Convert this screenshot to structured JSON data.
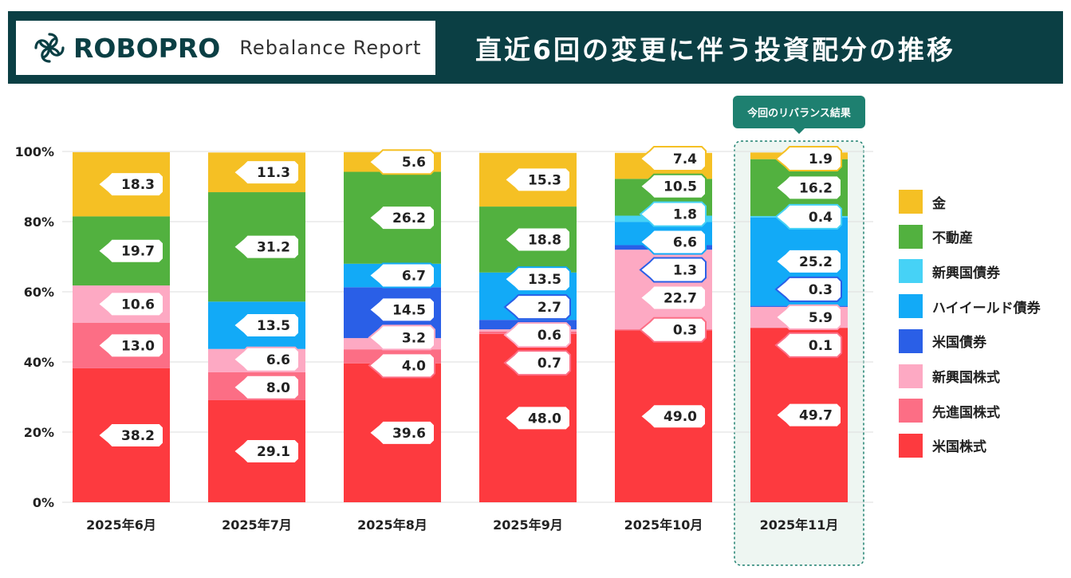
{
  "header": {
    "brand": "ROBOPRO",
    "subtitle": "Rebalance Report",
    "title": "直近6回の変更に伴う投資配分の推移",
    "logo_icon": "knot-logo-icon"
  },
  "colors": {
    "header_bg": "#0b3f44",
    "highlight_box": "#1e8070"
  },
  "chart_data": {
    "type": "bar",
    "stacked": true,
    "ylim": [
      0,
      100
    ],
    "yticks": [
      "0%",
      "20%",
      "40%",
      "60%",
      "80%",
      "100%"
    ],
    "categories": [
      "2025年6月",
      "2025年7月",
      "2025年8月",
      "2025年9月",
      "2025年10月",
      "2025年11月"
    ],
    "highlight": {
      "category_index": 5,
      "label": "今回のリバランス結果"
    },
    "series": [
      {
        "name": "米国株式",
        "color": "#fd3a3f",
        "values": [
          38.2,
          29.1,
          39.6,
          48.0,
          49.0,
          49.7
        ],
        "labels": [
          "38.2",
          "29.1",
          "39.6",
          "48.0",
          "49.0",
          "49.7"
        ]
      },
      {
        "name": "先進国株式",
        "color": "#fc6e85",
        "values": [
          13.0,
          8.0,
          4.0,
          0.7,
          0.3,
          0.1
        ],
        "labels": [
          "13.0",
          "8.0",
          "4.0",
          "0.7",
          "0.3",
          "0.1"
        ]
      },
      {
        "name": "新興国株式",
        "color": "#fda9c3",
        "values": [
          10.6,
          6.6,
          3.2,
          0.6,
          22.7,
          5.9
        ],
        "labels": [
          "10.6",
          "6.6",
          "3.2",
          "0.6",
          "22.7",
          "5.9"
        ]
      },
      {
        "name": "米国債券",
        "color": "#2a5fe7",
        "values": [
          0,
          0,
          14.5,
          2.7,
          1.3,
          0.3
        ],
        "labels": [
          "",
          "",
          "14.5",
          "2.7",
          "1.3",
          "0.3"
        ]
      },
      {
        "name": "ハイイールド債券",
        "color": "#12aaf7",
        "values": [
          0,
          13.5,
          6.7,
          13.5,
          6.6,
          25.2
        ],
        "labels": [
          "",
          "13.5",
          "6.7",
          "13.5",
          "6.6",
          "25.2"
        ]
      },
      {
        "name": "新興国債券",
        "color": "#46d2f6",
        "values": [
          0,
          0,
          0,
          0,
          1.8,
          0.4
        ],
        "labels": [
          "",
          "",
          "",
          "",
          "1.8",
          "0.4"
        ]
      },
      {
        "name": "不動産",
        "color": "#52b13f",
        "values": [
          19.7,
          31.2,
          26.2,
          18.8,
          10.5,
          16.2
        ],
        "labels": [
          "19.7",
          "31.2",
          "26.2",
          "18.8",
          "10.5",
          "16.2"
        ]
      },
      {
        "name": "金",
        "color": "#f5c024",
        "values": [
          18.3,
          11.3,
          5.6,
          15.3,
          7.4,
          1.9
        ],
        "labels": [
          "18.3",
          "11.3",
          "5.6",
          "15.3",
          "7.4",
          "1.9"
        ]
      }
    ],
    "legend_order": [
      "金",
      "不動産",
      "新興国債券",
      "ハイイールド債券",
      "米国債券",
      "新興国株式",
      "先進国株式",
      "米国株式"
    ],
    "legend_position": "right"
  }
}
